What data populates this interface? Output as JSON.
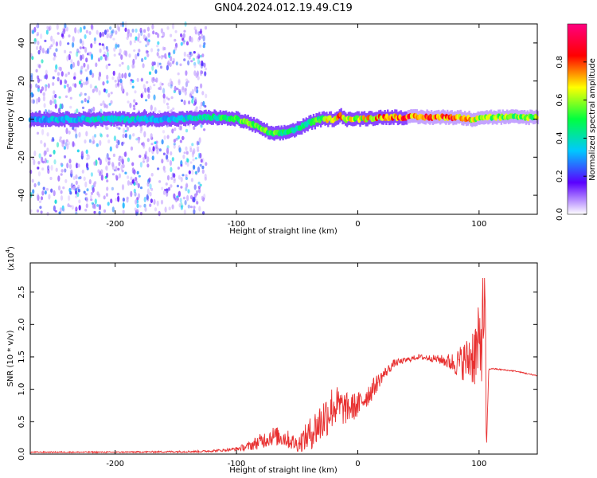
{
  "title": "GN04.2024.012.19.49.C19",
  "chart_data": [
    {
      "type": "heatmap",
      "xlabel": "Height of straight line (km)",
      "ylabel": "Frequency (Hz)",
      "xlim": [
        -270,
        148
      ],
      "ylim": [
        -50,
        50
      ],
      "x_ticks": [
        -200,
        -100,
        0,
        100
      ],
      "x_tick_labels": [
        "-200",
        "-100",
        "0",
        "100"
      ],
      "y_ticks": [
        -40,
        -20,
        0,
        20,
        40
      ],
      "y_tick_labels": [
        "-40",
        "-20",
        "0",
        "20",
        "40"
      ],
      "colorbar": {
        "label": "Normalized spectral amplitude",
        "range": [
          0,
          1
        ],
        "ticks": [
          0.0,
          0.2,
          0.4,
          0.6,
          0.8
        ],
        "tick_labels": [
          "0.0",
          "0.2",
          "0.4",
          "0.6",
          "0.8"
        ],
        "colormap": [
          "#ffffff",
          "#5a00ff",
          "#00c8ff",
          "#00ff40",
          "#ffff00",
          "#ff0000",
          "#ff0080"
        ]
      },
      "ridge": {
        "x": [
          -270,
          -250,
          -200,
          -150,
          -120,
          -100,
          -90,
          -80,
          -70,
          -60,
          -50,
          -40,
          -30,
          -20,
          -15,
          -10,
          0,
          20,
          50,
          80,
          95,
          100,
          110,
          148
        ],
        "freq": [
          0,
          0,
          0,
          0,
          1,
          0,
          -2,
          -5,
          -8,
          -7,
          -5,
          -2,
          0,
          0,
          2,
          0,
          0,
          1,
          1,
          1,
          0,
          1,
          1,
          1
        ],
        "amplitude": [
          0.3,
          0.35,
          0.4,
          0.35,
          0.45,
          0.55,
          0.6,
          0.6,
          0.55,
          0.5,
          0.45,
          0.5,
          0.6,
          0.75,
          0.8,
          0.7,
          0.65,
          0.8,
          0.85,
          0.85,
          0.7,
          0.6,
          0.6,
          0.6
        ]
      },
      "noise_region_km": [
        -270,
        -125
      ]
    },
    {
      "type": "line",
      "xlabel": "Height of straight line (km)",
      "ylabel": "SNR (10 * v/v)",
      "y_scale_label": "(x10",
      "y_scale_exponent": "4",
      "y_scale_suffix": ")",
      "xlim": [
        -270,
        148
      ],
      "ylim": [
        0,
        29500
      ],
      "x_ticks": [
        -200,
        -100,
        0,
        100
      ],
      "x_tick_labels": [
        "-200",
        "-100",
        "0",
        "100"
      ],
      "y_ticks": [
        0,
        5000,
        10000,
        15000,
        20000,
        25000
      ],
      "y_tick_labels": [
        "0.0",
        "0.5",
        "1.0",
        "1.5",
        "2.0",
        "2.5"
      ],
      "color": "#e83030",
      "series": [
        {
          "x": [
            -270,
            -200,
            -130,
            -110,
            -100,
            -90,
            -80,
            -70,
            -60,
            -50,
            -40,
            -30,
            -20,
            -10,
            0,
            10,
            20,
            30,
            40,
            50,
            60,
            70,
            80,
            90,
            95,
            100,
            103,
            105,
            106,
            108,
            110,
            120,
            130,
            140,
            148
          ],
          "y": [
            300,
            300,
            400,
            600,
            800,
            1200,
            2000,
            2800,
            2500,
            1500,
            3000,
            5000,
            7500,
            7000,
            7500,
            9500,
            12000,
            14000,
            14500,
            15000,
            14800,
            14500,
            14000,
            14500,
            15500,
            16000,
            20000,
            24000,
            300,
            13000,
            13200,
            13000,
            12800,
            12400,
            12100
          ],
          "noise_amp": [
            100,
            100,
            150,
            200,
            300,
            700,
            1200,
            1500,
            1500,
            1200,
            2500,
            3500,
            3500,
            2500,
            2000,
            1800,
            1000,
            600,
            400,
            400,
            500,
            800,
            1800,
            3500,
            5000,
            7000,
            8000,
            5000,
            200,
            150,
            100,
            100,
            100,
            100,
            100
          ]
        }
      ]
    }
  ]
}
